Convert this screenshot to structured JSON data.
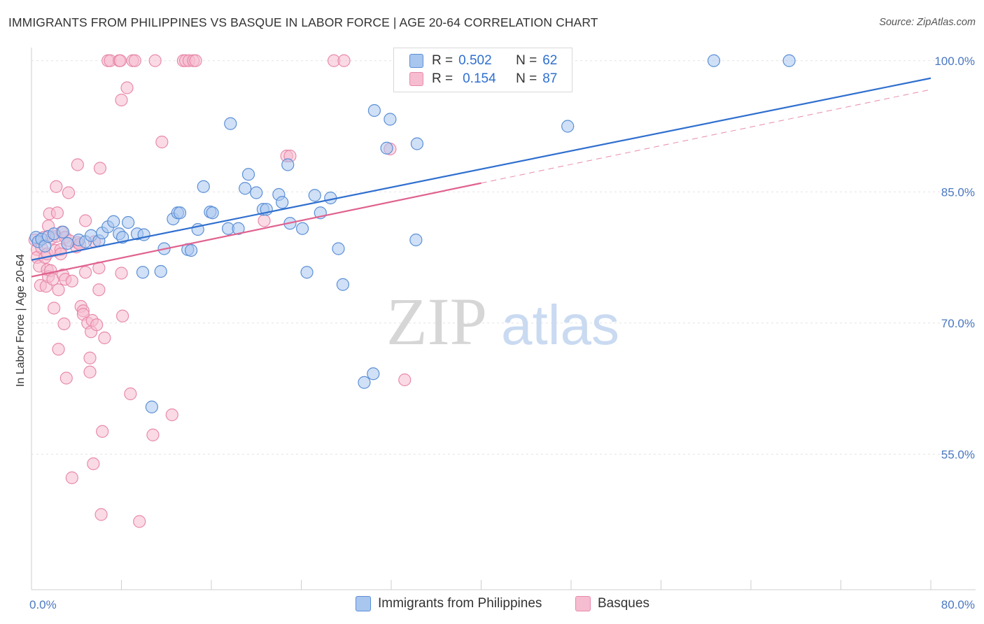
{
  "title": "IMMIGRANTS FROM PHILIPPINES VS BASQUE IN LABOR FORCE | AGE 20-64 CORRELATION CHART",
  "source": "Source: ZipAtlas.com",
  "watermark": {
    "zip": "ZIP",
    "atlas": "atlas"
  },
  "colors": {
    "blue_fill": "#a9c6ee",
    "blue_stroke": "#5b8fd6",
    "blue_line": "#2f6fcf",
    "pink_fill": "#f6bcd0",
    "pink_stroke": "#e88aab",
    "pink_line": "#e0628f",
    "axis_text": "#4a78c2",
    "grid": "#e3e3e3"
  },
  "legend": {
    "rows": [
      {
        "r_label": "R =",
        "r_value": "0.502",
        "n_label": "N =",
        "n_value": "62"
      },
      {
        "r_label": "R =",
        "r_value": "0.154",
        "n_label": "N =",
        "n_value": "87"
      }
    ]
  },
  "chart_data": {
    "type": "scatter",
    "title": "IMMIGRANTS FROM PHILIPPINES VS BASQUE IN LABOR FORCE | AGE 20-64 CORRELATION CHART",
    "xlabel": "",
    "ylabel": "In Labor Force | Age 20-64",
    "xlim": [
      0,
      80
    ],
    "ylim": [
      39.5,
      101.5
    ],
    "x_tick_labels": [
      "0.0%",
      "80.0%"
    ],
    "y_ticks": [
      100,
      85,
      70,
      55
    ],
    "y_tick_labels": [
      "100.0%",
      "85.0%",
      "70.0%",
      "55.0%"
    ],
    "grid": true,
    "legend_position": "top-center",
    "series": [
      {
        "name": "Immigrants from Philippines",
        "color": "#a9c6ee",
        "trend": {
          "x": [
            0,
            80
          ],
          "y": [
            77.2,
            98.0
          ],
          "style": "solid"
        },
        "points": [
          [
            0.4,
            79.8
          ],
          [
            0.6,
            79.3
          ],
          [
            0.9,
            79.6
          ],
          [
            1.2,
            78.8
          ],
          [
            1.5,
            79.9
          ],
          [
            2.0,
            80.2
          ],
          [
            2.8,
            80.4
          ],
          [
            3.2,
            79.1
          ],
          [
            4.2,
            79.5
          ],
          [
            4.8,
            79.3
          ],
          [
            5.3,
            80.0
          ],
          [
            6.0,
            79.4
          ],
          [
            6.3,
            80.3
          ],
          [
            6.8,
            81.0
          ],
          [
            7.3,
            81.6
          ],
          [
            7.8,
            80.2
          ],
          [
            8.1,
            79.8
          ],
          [
            8.6,
            81.5
          ],
          [
            9.4,
            80.2
          ],
          [
            10.0,
            80.1
          ],
          [
            9.9,
            75.8
          ],
          [
            11.5,
            75.9
          ],
          [
            11.8,
            78.5
          ],
          [
            12.6,
            81.9
          ],
          [
            13.0,
            82.6
          ],
          [
            13.2,
            82.6
          ],
          [
            13.9,
            78.4
          ],
          [
            14.2,
            78.3
          ],
          [
            14.8,
            80.7
          ],
          [
            15.3,
            85.6
          ],
          [
            15.9,
            82.7
          ],
          [
            16.1,
            82.6
          ],
          [
            17.5,
            80.8
          ],
          [
            17.7,
            92.8
          ],
          [
            18.4,
            80.8
          ],
          [
            19.0,
            85.4
          ],
          [
            19.3,
            87.0
          ],
          [
            20.0,
            84.9
          ],
          [
            20.6,
            83.0
          ],
          [
            20.9,
            83.0
          ],
          [
            22.0,
            84.7
          ],
          [
            22.3,
            83.8
          ],
          [
            22.8,
            88.1
          ],
          [
            23.0,
            81.4
          ],
          [
            24.1,
            80.8
          ],
          [
            24.5,
            75.8
          ],
          [
            25.2,
            84.6
          ],
          [
            25.7,
            82.6
          ],
          [
            26.6,
            84.3
          ],
          [
            27.3,
            78.5
          ],
          [
            27.7,
            74.4
          ],
          [
            29.6,
            63.2
          ],
          [
            30.4,
            64.2
          ],
          [
            30.5,
            94.3
          ],
          [
            31.6,
            90.0
          ],
          [
            31.9,
            93.3
          ],
          [
            34.3,
            90.5
          ],
          [
            34.2,
            79.5
          ],
          [
            10.7,
            60.4
          ],
          [
            47.7,
            92.5
          ],
          [
            60.7,
            100.0
          ],
          [
            67.4,
            100.0
          ]
        ]
      },
      {
        "name": "Basques",
        "color": "#f6bcd0",
        "trend": {
          "x": [
            0,
            40
          ],
          "y": [
            75.3,
            86.0
          ],
          "style": "solid",
          "extension": {
            "x": [
              40,
              80
            ],
            "y": [
              86.0,
              96.7
            ],
            "style": "dashed"
          }
        },
        "points": [
          [
            0.3,
            79.5
          ],
          [
            0.5,
            78.4
          ],
          [
            0.5,
            77.5
          ],
          [
            0.7,
            76.5
          ],
          [
            0.8,
            74.3
          ],
          [
            0.9,
            78.6
          ],
          [
            1.1,
            79.8
          ],
          [
            1.2,
            77.5
          ],
          [
            1.3,
            74.2
          ],
          [
            1.4,
            77.9
          ],
          [
            1.4,
            76.1
          ],
          [
            1.5,
            81.1
          ],
          [
            1.5,
            75.3
          ],
          [
            1.6,
            82.5
          ],
          [
            1.7,
            76.0
          ],
          [
            1.8,
            79.7
          ],
          [
            1.9,
            75.0
          ],
          [
            2.0,
            71.7
          ],
          [
            2.1,
            78.3
          ],
          [
            2.2,
            79.9
          ],
          [
            2.2,
            85.6
          ],
          [
            2.3,
            82.6
          ],
          [
            2.4,
            67.0
          ],
          [
            2.4,
            73.8
          ],
          [
            2.6,
            78.4
          ],
          [
            2.6,
            77.9
          ],
          [
            2.7,
            80.4
          ],
          [
            2.8,
            75.5
          ],
          [
            2.9,
            69.9
          ],
          [
            3.0,
            79.8
          ],
          [
            3.0,
            75.0
          ],
          [
            3.1,
            63.7
          ],
          [
            3.3,
            84.9
          ],
          [
            3.4,
            79.4
          ],
          [
            3.6,
            74.8
          ],
          [
            3.6,
            52.3
          ],
          [
            4.0,
            78.7
          ],
          [
            4.1,
            79.2
          ],
          [
            4.1,
            88.1
          ],
          [
            4.3,
            79.0
          ],
          [
            4.4,
            71.9
          ],
          [
            4.6,
            71.4
          ],
          [
            4.6,
            71.0
          ],
          [
            4.8,
            81.7
          ],
          [
            4.8,
            75.8
          ],
          [
            5.0,
            70.0
          ],
          [
            5.2,
            66.0
          ],
          [
            5.2,
            64.4
          ],
          [
            5.3,
            69.0
          ],
          [
            5.4,
            70.3
          ],
          [
            5.5,
            53.9
          ],
          [
            5.6,
            79.3
          ],
          [
            5.8,
            69.8
          ],
          [
            6.0,
            76.3
          ],
          [
            6.0,
            73.8
          ],
          [
            6.1,
            87.7
          ],
          [
            6.2,
            48.1
          ],
          [
            6.3,
            57.6
          ],
          [
            6.5,
            68.3
          ],
          [
            6.8,
            100.0
          ],
          [
            7.0,
            100.0
          ],
          [
            7.8,
            100.0
          ],
          [
            7.9,
            100.0
          ],
          [
            8.0,
            95.5
          ],
          [
            8.0,
            75.7
          ],
          [
            8.1,
            70.8
          ],
          [
            8.5,
            96.9
          ],
          [
            8.8,
            61.9
          ],
          [
            9.0,
            100.0
          ],
          [
            9.2,
            100.0
          ],
          [
            9.6,
            47.3
          ],
          [
            10.8,
            57.2
          ],
          [
            11.0,
            100.0
          ],
          [
            11.6,
            90.7
          ],
          [
            12.5,
            59.5
          ],
          [
            13.5,
            100.0
          ],
          [
            13.7,
            100.0
          ],
          [
            14.0,
            100.0
          ],
          [
            14.4,
            100.0
          ],
          [
            14.6,
            100.0
          ],
          [
            20.7,
            81.7
          ],
          [
            22.7,
            89.1
          ],
          [
            23.0,
            89.1
          ],
          [
            26.9,
            100.0
          ],
          [
            27.8,
            100.0
          ],
          [
            31.9,
            89.9
          ],
          [
            33.2,
            63.5
          ]
        ]
      }
    ]
  }
}
